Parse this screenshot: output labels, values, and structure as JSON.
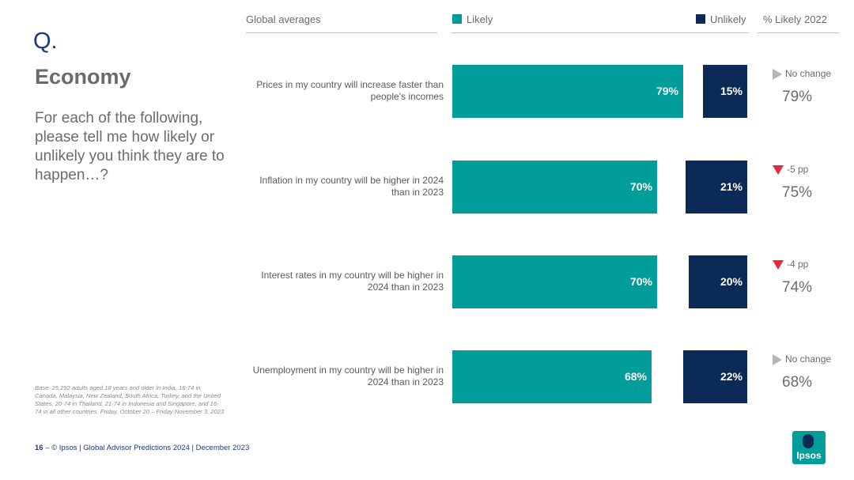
{
  "slide": {
    "q_marker": "Q.",
    "title": "Economy",
    "question": "For each of the following, please tell me how likely or unlikely you think they are to happen…?",
    "base_note": "Base: 25,292 adults aged 18 years and older in India, 18-74 in Canada, Malaysia, New Zealand, South Africa, Turkey, and the United States, 20-74 in Thailand, 21-74 in Indonesia and Singapore, and 16-74 in all other countries. Friday, October 20 – Friday November 3, 2023",
    "page_number": "16",
    "footer_text": "–  © Ipsos | Global Advisor Predictions 2024 | December 2023",
    "logo_text": "Ipsos"
  },
  "header": {
    "left_label": "Global averages",
    "legend_likely": "Likely",
    "legend_unlikely": "Unlikely",
    "prior_label": "% Likely 2022"
  },
  "colors": {
    "likely": "#009d9a",
    "unlikely": "#0b2a56",
    "decrease": "#e8283c",
    "no_change": "#b5b5b5"
  },
  "chart_data": {
    "type": "bar",
    "categories": [
      "Prices in my country will increase faster than people's incomes",
      "Inflation in my country  will be higher in 2024 than in 2023",
      "Interest rates in my country will be higher in 2024 than in 2023",
      "Unemployment in my country will be higher in 2024 than in 2023"
    ],
    "series": [
      {
        "name": "Likely",
        "values": [
          79,
          70,
          70,
          68
        ],
        "labels": [
          "79%",
          "70%",
          "70%",
          "68%"
        ]
      },
      {
        "name": "Unlikely",
        "values": [
          15,
          21,
          20,
          22
        ],
        "labels": [
          "15%",
          "21%",
          "20%",
          "22%"
        ]
      }
    ],
    "change_vs_2022": [
      {
        "indicator": "no-change",
        "text": "No change",
        "value": "79%"
      },
      {
        "indicator": "down",
        "text": "-5 pp",
        "value": "75%"
      },
      {
        "indicator": "down",
        "text": "-4 pp",
        "value": "74%"
      },
      {
        "indicator": "no-change",
        "text": "No change",
        "value": "68%"
      }
    ],
    "xlim": [
      0,
      100
    ]
  }
}
